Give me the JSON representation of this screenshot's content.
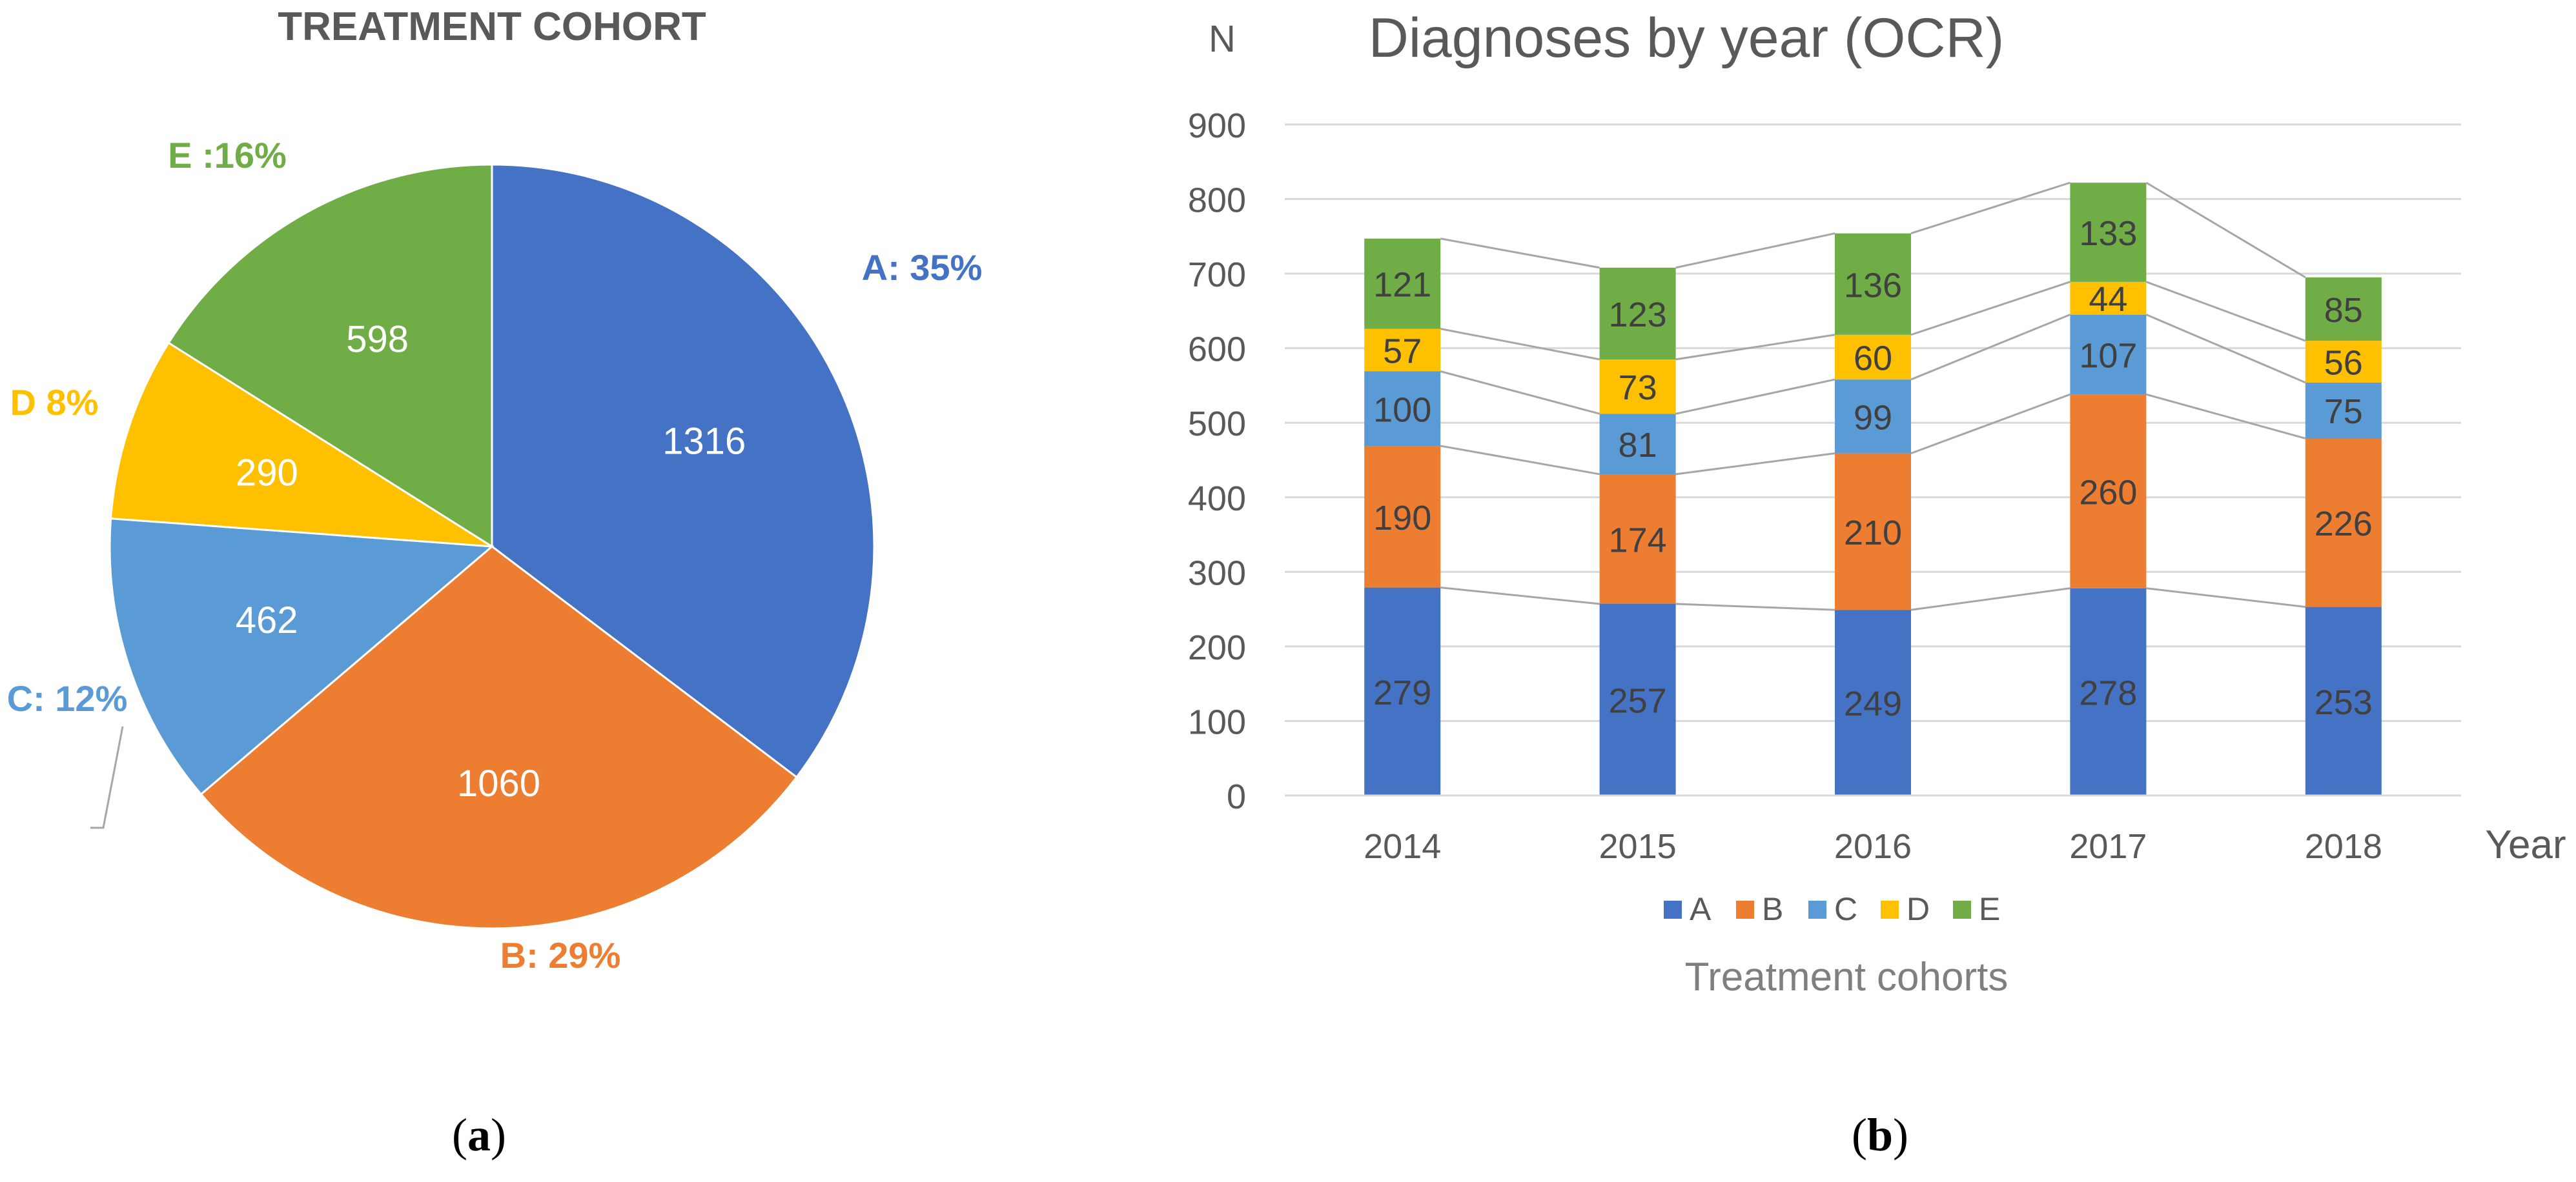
{
  "chart_data": [
    {
      "panel": "(a)",
      "panel_letter": "a",
      "type": "pie",
      "title": "TREATMENT COHORT",
      "slices": [
        {
          "name": "A",
          "value": 1316,
          "label": "A: 35%",
          "color": "#4472C4"
        },
        {
          "name": "B",
          "value": 1060,
          "label": "B: 29%",
          "color": "#ED7D31"
        },
        {
          "name": "C",
          "value": 462,
          "label": "C: 12%",
          "color": "#5B9BD5"
        },
        {
          "name": "D",
          "value": 290,
          "label": "D 8%",
          "color": "#FFC000"
        },
        {
          "name": "E",
          "value": 598,
          "label": "E :16%",
          "color": "#70AD47"
        }
      ]
    },
    {
      "panel": "(b)",
      "panel_letter": "b",
      "type": "bar",
      "stacked": true,
      "title": "Diagnoses by year (OCR)",
      "ylabel": "N",
      "xlabel": "Year",
      "legend_title": "Treatment cohorts",
      "legend_position": "bottom",
      "categories": [
        "2014",
        "2015",
        "2016",
        "2017",
        "2018"
      ],
      "ylim": [
        0,
        900
      ],
      "yticks": [
        0,
        100,
        200,
        300,
        400,
        500,
        600,
        700,
        800,
        900
      ],
      "series": [
        {
          "name": "A",
          "color": "#4472C4",
          "values": [
            279,
            257,
            249,
            278,
            253
          ]
        },
        {
          "name": "B",
          "color": "#ED7D31",
          "values": [
            190,
            174,
            210,
            260,
            226
          ]
        },
        {
          "name": "C",
          "color": "#5B9BD5",
          "values": [
            100,
            81,
            99,
            107,
            75
          ]
        },
        {
          "name": "D",
          "color": "#FFC000",
          "values": [
            57,
            73,
            60,
            44,
            56
          ]
        },
        {
          "name": "E",
          "color": "#70AD47",
          "values": [
            121,
            123,
            136,
            133,
            85
          ]
        }
      ]
    }
  ]
}
